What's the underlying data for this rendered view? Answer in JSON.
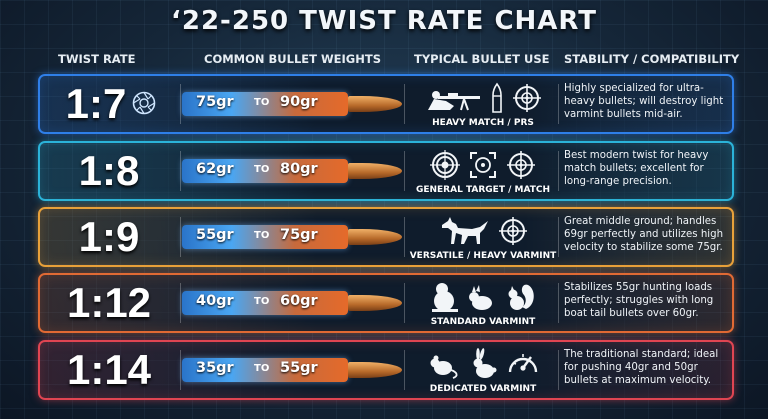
{
  "title": "‘22-250 TWIST RATE CHART",
  "headers": {
    "twist_rate": "TWIST RATE",
    "bullet_weights": "COMMON BULLET WEIGHTS",
    "bullet_use": "TYPICAL BULLET USE",
    "stability": "STABILITY / COMPATIBILITY"
  },
  "rows": [
    {
      "ratio": "1:7",
      "min": "75gr",
      "to": "TO",
      "max": "90gr",
      "use": "HEAVY MATCH / PRS",
      "desc": "Highly specialized for ultra-heavy bullets; will destroy light varmint bullets mid-air.",
      "color": "#2f7fe8",
      "icons": [
        "prone-shooter-icon",
        "cartridge-icon",
        "crosshair-icon"
      ]
    },
    {
      "ratio": "1:8",
      "min": "62gr",
      "to": "TO",
      "max": "80gr",
      "use": "GENERAL TARGET / MATCH",
      "desc": "Best modern twist for heavy match bullets; excellent for long-range precision.",
      "color": "#2bb3d9",
      "icons": [
        "target-icon",
        "reticle-icon",
        "crosshair-icon"
      ]
    },
    {
      "ratio": "1:9",
      "min": "55gr",
      "to": "TO",
      "max": "75gr",
      "use": "VERSATILE / HEAVY VARMINT",
      "desc": "Great middle ground; handles 69gr perfectly and utilizes high velocity to stabilize some 75gr.",
      "color": "#e8a13a",
      "icons": [
        "coyote-icon",
        "crosshair-icon"
      ]
    },
    {
      "ratio": "1:12",
      "min": "40gr",
      "to": "TO",
      "max": "60gr",
      "use": "STANDARD VARMINT",
      "desc": "Stabilizes 55gr hunting loads perfectly; struggles with long boat tail bullets over 60gr.",
      "color": "#e06a34",
      "icons": [
        "groundhog-icon",
        "prairie-dog-icon",
        "squirrel-icon"
      ]
    },
    {
      "ratio": "1:14",
      "min": "35gr",
      "to": "TO",
      "max": "55gr",
      "use": "DEDICATED VARMINT",
      "desc": "The traditional standard; ideal for pushing 40gr and 50gr bullets at maximum velocity.",
      "color": "#e04552",
      "icons": [
        "rat-icon",
        "rabbit-icon",
        "speedometer-icon"
      ]
    }
  ]
}
